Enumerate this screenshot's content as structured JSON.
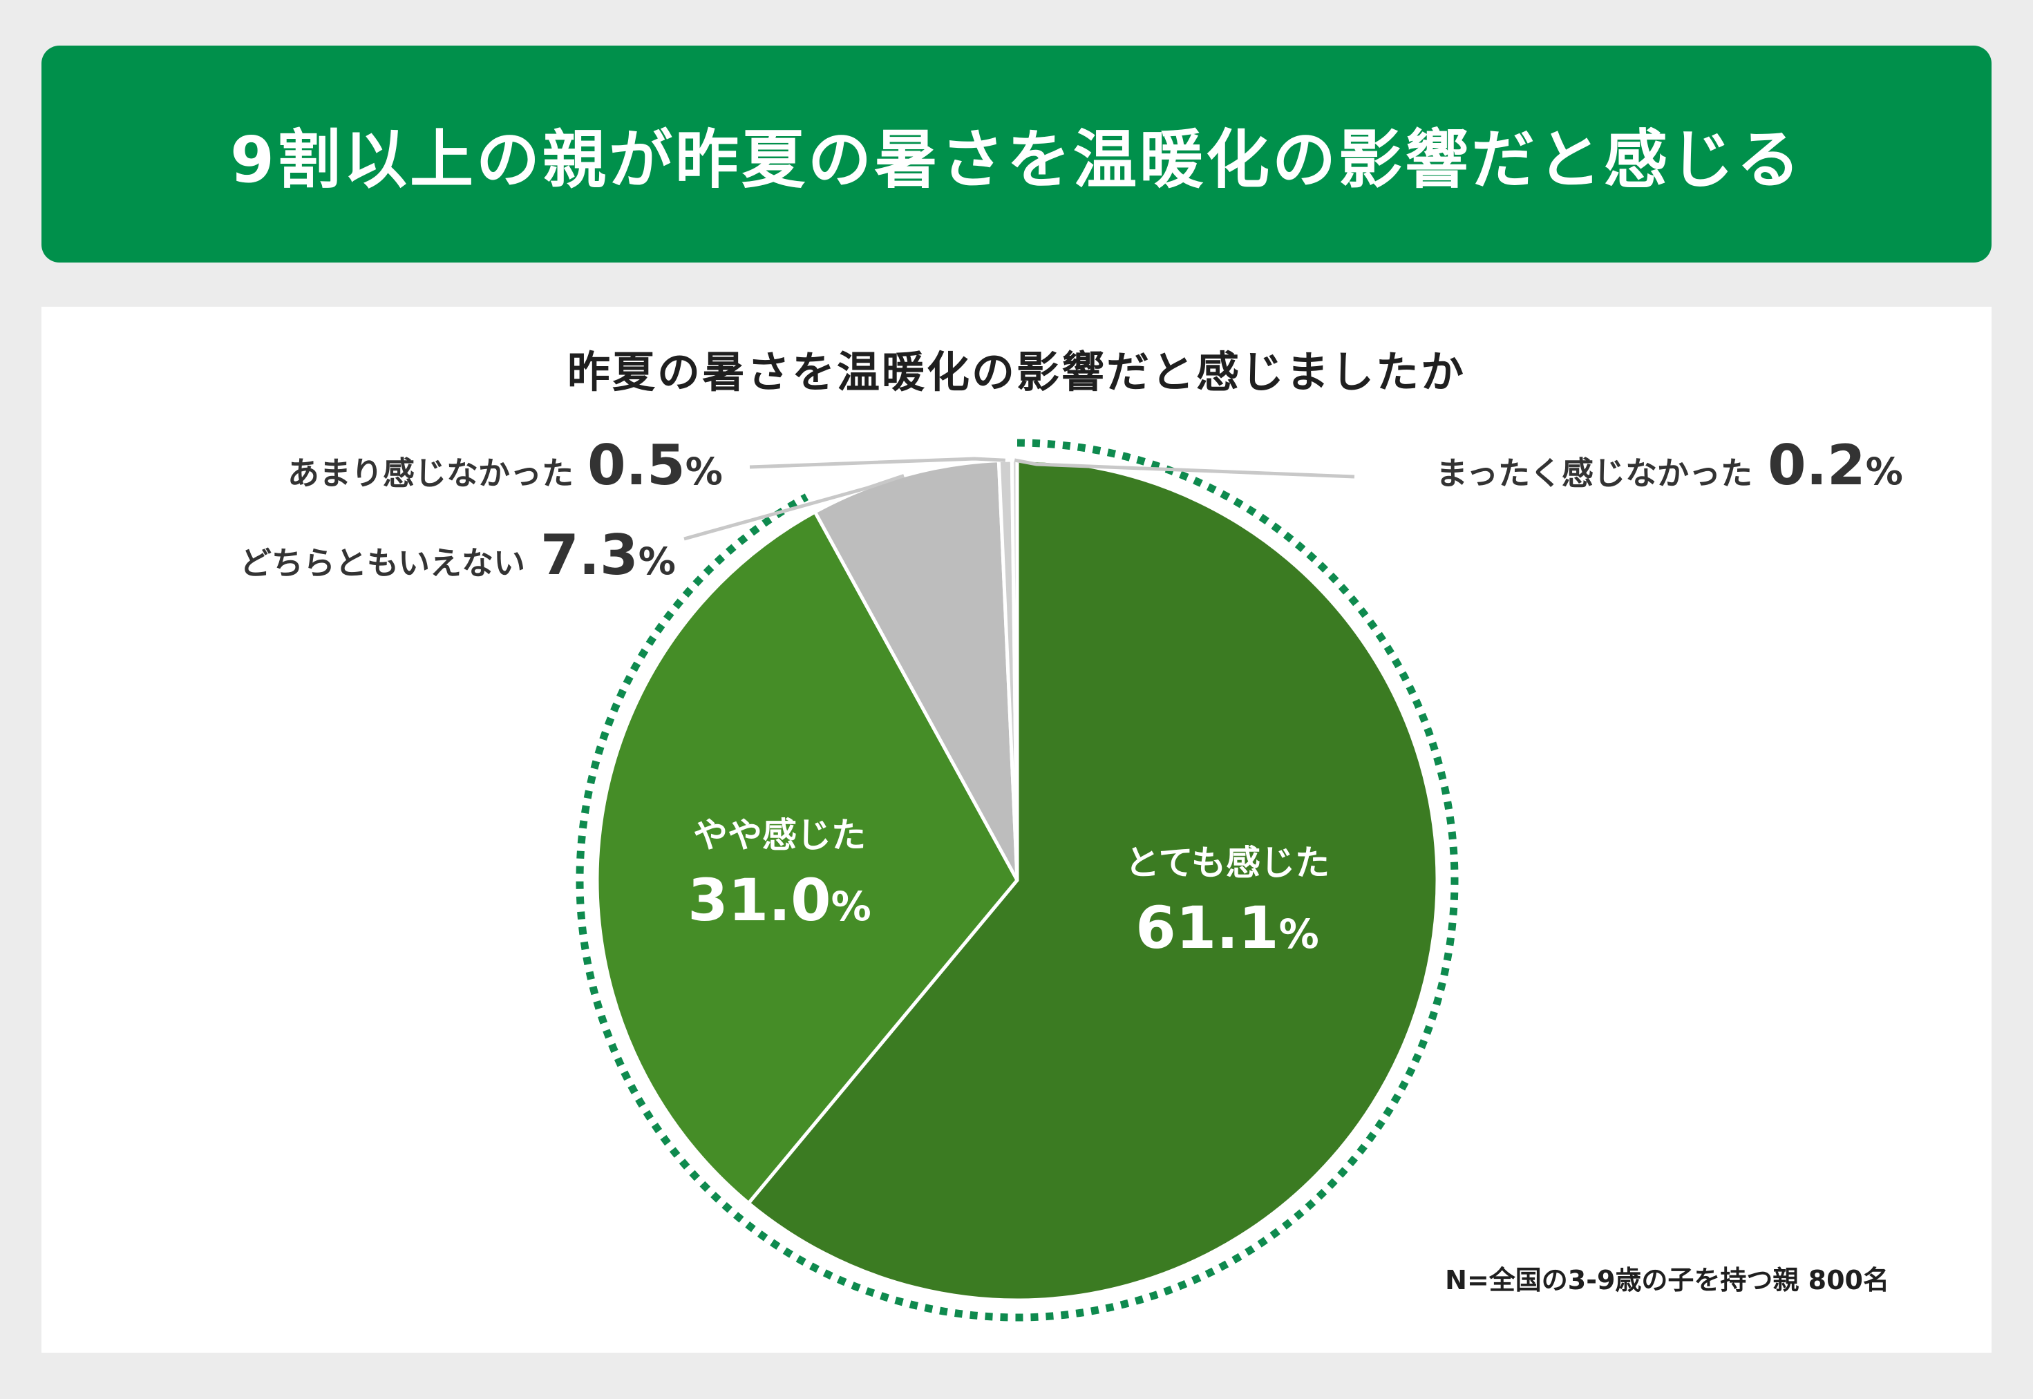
{
  "header": {
    "title": "9割以上の親が昨夏の暑さを温暖化の影響だと感じる"
  },
  "chart_data": {
    "type": "pie",
    "title": "昨夏の暑さを温暖化の影響だと感じましたか",
    "unit": "%",
    "slices": [
      {
        "label": "とても感じた",
        "value": 61.1,
        "value_text": "61.1",
        "color": "#3b7b22"
      },
      {
        "label": "やや感じた",
        "value": 31.0,
        "value_text": "31.0",
        "color": "#458d27"
      },
      {
        "label": "どちらともいえない",
        "value": 7.3,
        "value_text": "7.3",
        "color": "#bdbdbd"
      },
      {
        "label": "あまり感じなかった",
        "value": 0.5,
        "value_text": "0.5",
        "color": "#cfcfcf"
      },
      {
        "label": "まったく感じなかった",
        "value": 0.2,
        "value_text": "0.2",
        "color": "#d6d6d6"
      }
    ],
    "highlight_ring_color": "#0e8a4e"
  },
  "footnote": "N=全国の3-9歳の子を持つ親 800名"
}
